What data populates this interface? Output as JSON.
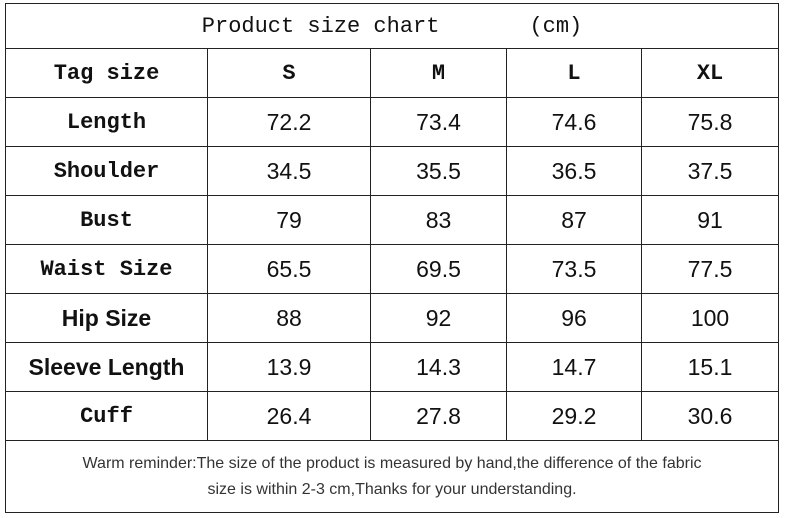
{
  "header": {
    "title": "Product size chart",
    "unit": "(cm)"
  },
  "table": {
    "columns": [
      "Tag size",
      "S",
      "M",
      "L",
      "XL"
    ],
    "rows": [
      [
        "Length",
        72.2,
        73.4,
        74.6,
        75.8
      ],
      [
        "Shoulder",
        34.5,
        35.5,
        36.5,
        37.5
      ],
      [
        "Bust",
        79,
        83,
        87,
        91
      ],
      [
        "Waist Size",
        65.5,
        69.5,
        73.5,
        77.5
      ],
      [
        "Hip Size",
        88,
        92,
        96,
        100
      ],
      [
        "Sleeve Length",
        13.9,
        14.3,
        14.7,
        15.1
      ],
      [
        "Cuff",
        26.4,
        27.8,
        29.2,
        30.6
      ]
    ]
  },
  "footer": {
    "lines": [
      "Warm reminder:The size of the product is measured by hand,the difference of the fabric",
      "size is within 2-3 cm,Thanks for your understanding."
    ]
  }
}
